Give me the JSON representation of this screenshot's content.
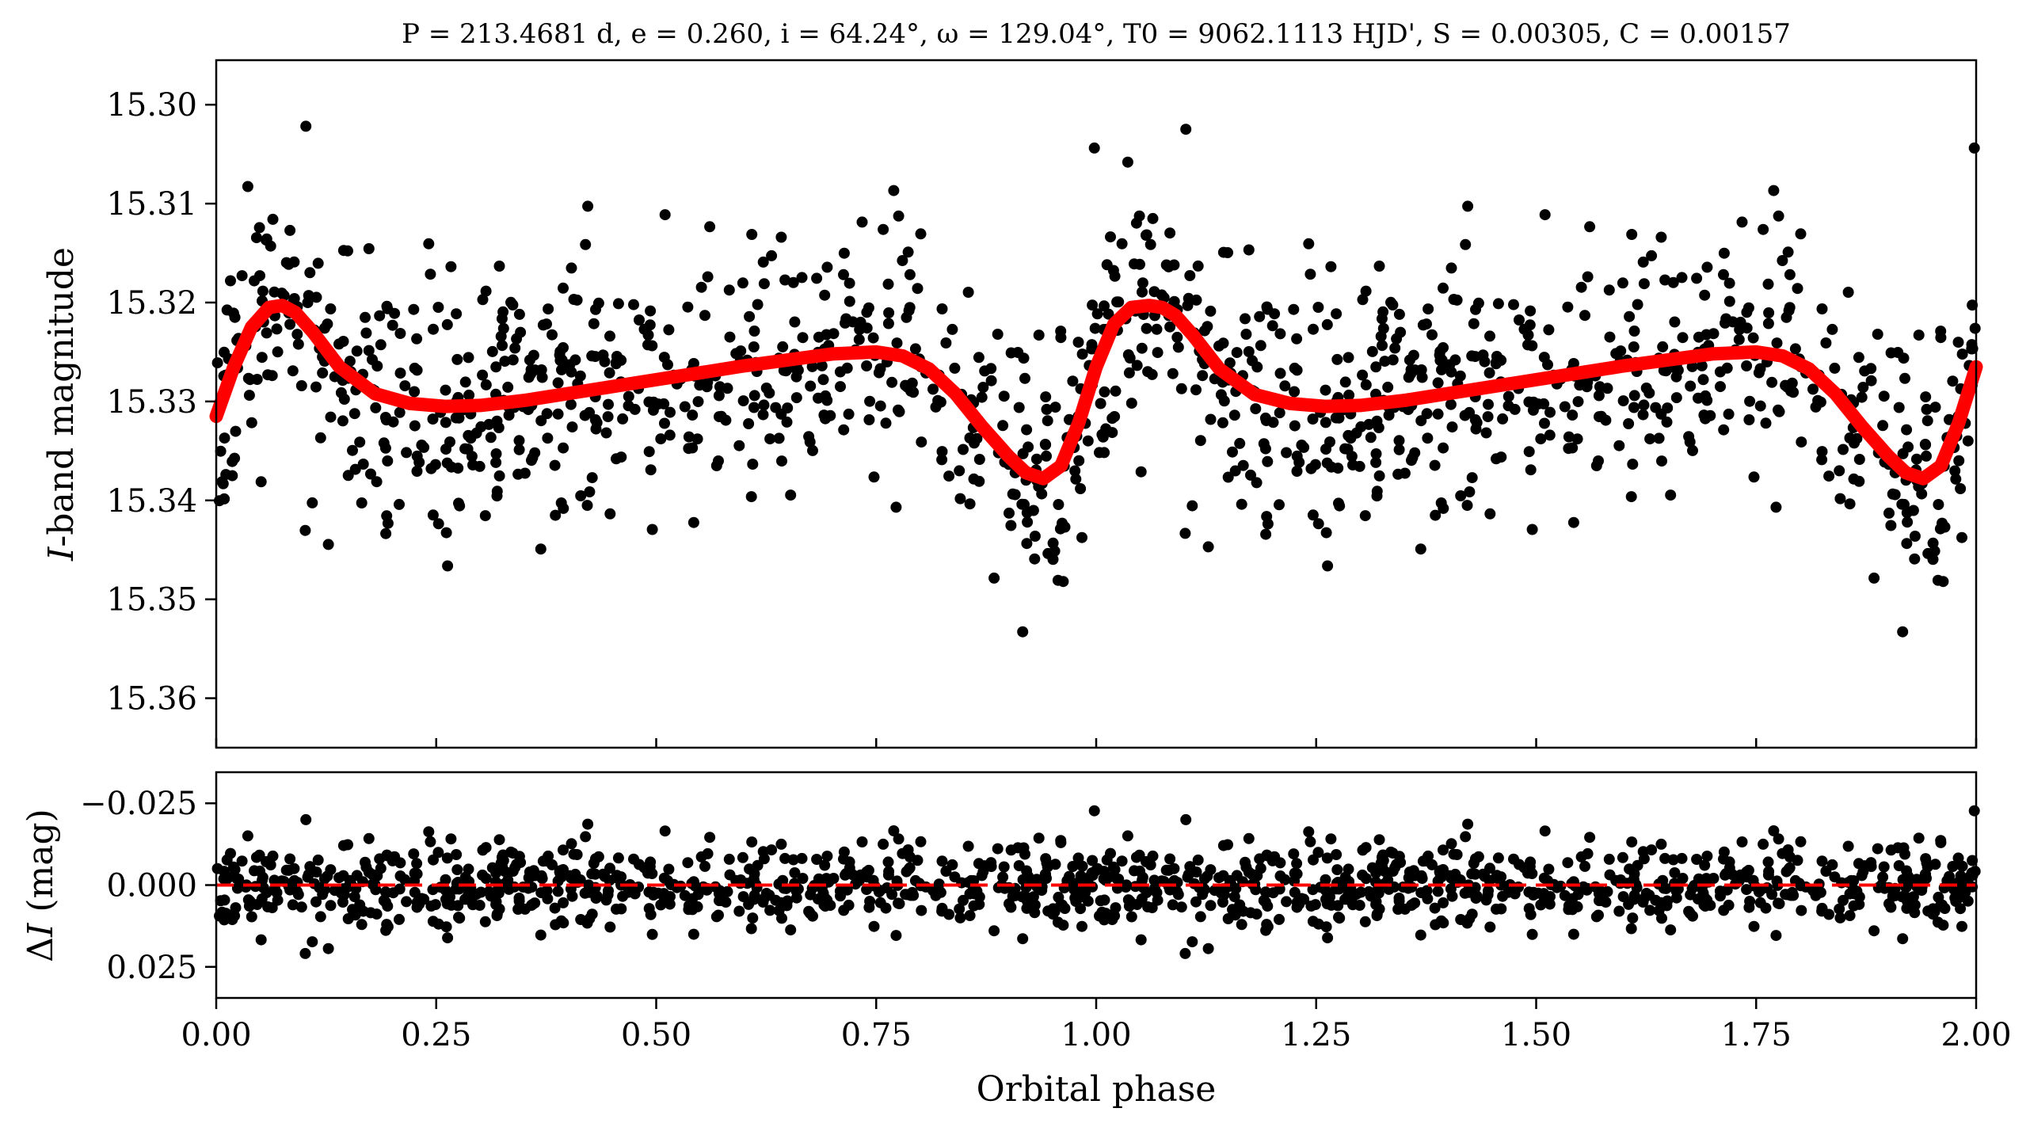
{
  "chart_data": [
    {
      "type": "scatter",
      "title": "P = 213.4681 d, e = 0.260, i = 64.24°, ω = 129.04°, T0 = 9062.1113 HJD', S = 0.00305, C = 0.00157",
      "ylabel_italic": "I",
      "ylabel_rest": "-band magnitude",
      "xlim": [
        0.0,
        2.0
      ],
      "ylim": [
        15.365,
        15.2955
      ],
      "y_inverted": true,
      "xticks": [
        0.0,
        0.25,
        0.5,
        0.75,
        1.0,
        1.25,
        1.5,
        1.75,
        2.0
      ],
      "yticks": [
        15.3,
        15.31,
        15.32,
        15.33,
        15.34,
        15.35,
        15.36
      ],
      "ytick_labels": [
        "15.30",
        "15.31",
        "15.32",
        "15.33",
        "15.34",
        "15.35",
        "15.36"
      ],
      "point_color": "#000000",
      "model_color": "#ff0000",
      "model_x": [
        0.0,
        0.02,
        0.04,
        0.06,
        0.075,
        0.09,
        0.11,
        0.14,
        0.18,
        0.22,
        0.26,
        0.3,
        0.35,
        0.4,
        0.45,
        0.5,
        0.55,
        0.6,
        0.65,
        0.7,
        0.75,
        0.78,
        0.81,
        0.84,
        0.87,
        0.9,
        0.92,
        0.94,
        0.96,
        0.98,
        1.0,
        1.02,
        1.04,
        1.06,
        1.075,
        1.09,
        1.11,
        1.14,
        1.18,
        1.22,
        1.26,
        1.3,
        1.35,
        1.4,
        1.45,
        1.5,
        1.55,
        1.6,
        1.65,
        1.7,
        1.75,
        1.78,
        1.81,
        1.84,
        1.87,
        1.9,
        1.92,
        1.94,
        1.96,
        1.98,
        2.0
      ],
      "model_y": [
        15.3315,
        15.3265,
        15.3225,
        15.3205,
        15.3203,
        15.321,
        15.323,
        15.3265,
        15.3292,
        15.3302,
        15.3305,
        15.3304,
        15.3299,
        15.3292,
        15.3285,
        15.3278,
        15.3271,
        15.3264,
        15.3258,
        15.3252,
        15.325,
        15.3254,
        15.3267,
        15.3292,
        15.3325,
        15.3355,
        15.3372,
        15.3378,
        15.3365,
        15.3322,
        15.3265,
        15.3222,
        15.3205,
        15.3203,
        15.3205,
        15.3213,
        15.3233,
        15.3267,
        15.3293,
        15.3302,
        15.3305,
        15.3304,
        15.3299,
        15.3292,
        15.3285,
        15.3278,
        15.3271,
        15.3264,
        15.3258,
        15.3252,
        15.325,
        15.3254,
        15.3267,
        15.3292,
        15.3325,
        15.3355,
        15.3372,
        15.3378,
        15.3365,
        15.3322,
        15.3265
      ]
    },
    {
      "type": "scatter",
      "xlabel": "Orbital phase",
      "ylabel_prefix": "Δ",
      "ylabel_italic": "I",
      "ylabel_rest": " (mag)",
      "xlim": [
        0.0,
        2.0
      ],
      "ylim": [
        0.0345,
        -0.0345
      ],
      "y_inverted": true,
      "xticks": [
        0.0,
        0.25,
        0.5,
        0.75,
        1.0,
        1.25,
        1.5,
        1.75,
        2.0
      ],
      "xtick_labels": [
        "0.00",
        "0.25",
        "0.50",
        "0.75",
        "1.00",
        "1.25",
        "1.50",
        "1.75",
        "2.00"
      ],
      "yticks": [
        -0.025,
        0.0,
        0.025
      ],
      "ytick_labels": [
        "−0.025",
        "0.000",
        "0.025"
      ],
      "zero_line": 0.0,
      "zero_line_style": "dashed",
      "zero_line_color": "#ff0000",
      "point_color": "#000000"
    }
  ]
}
